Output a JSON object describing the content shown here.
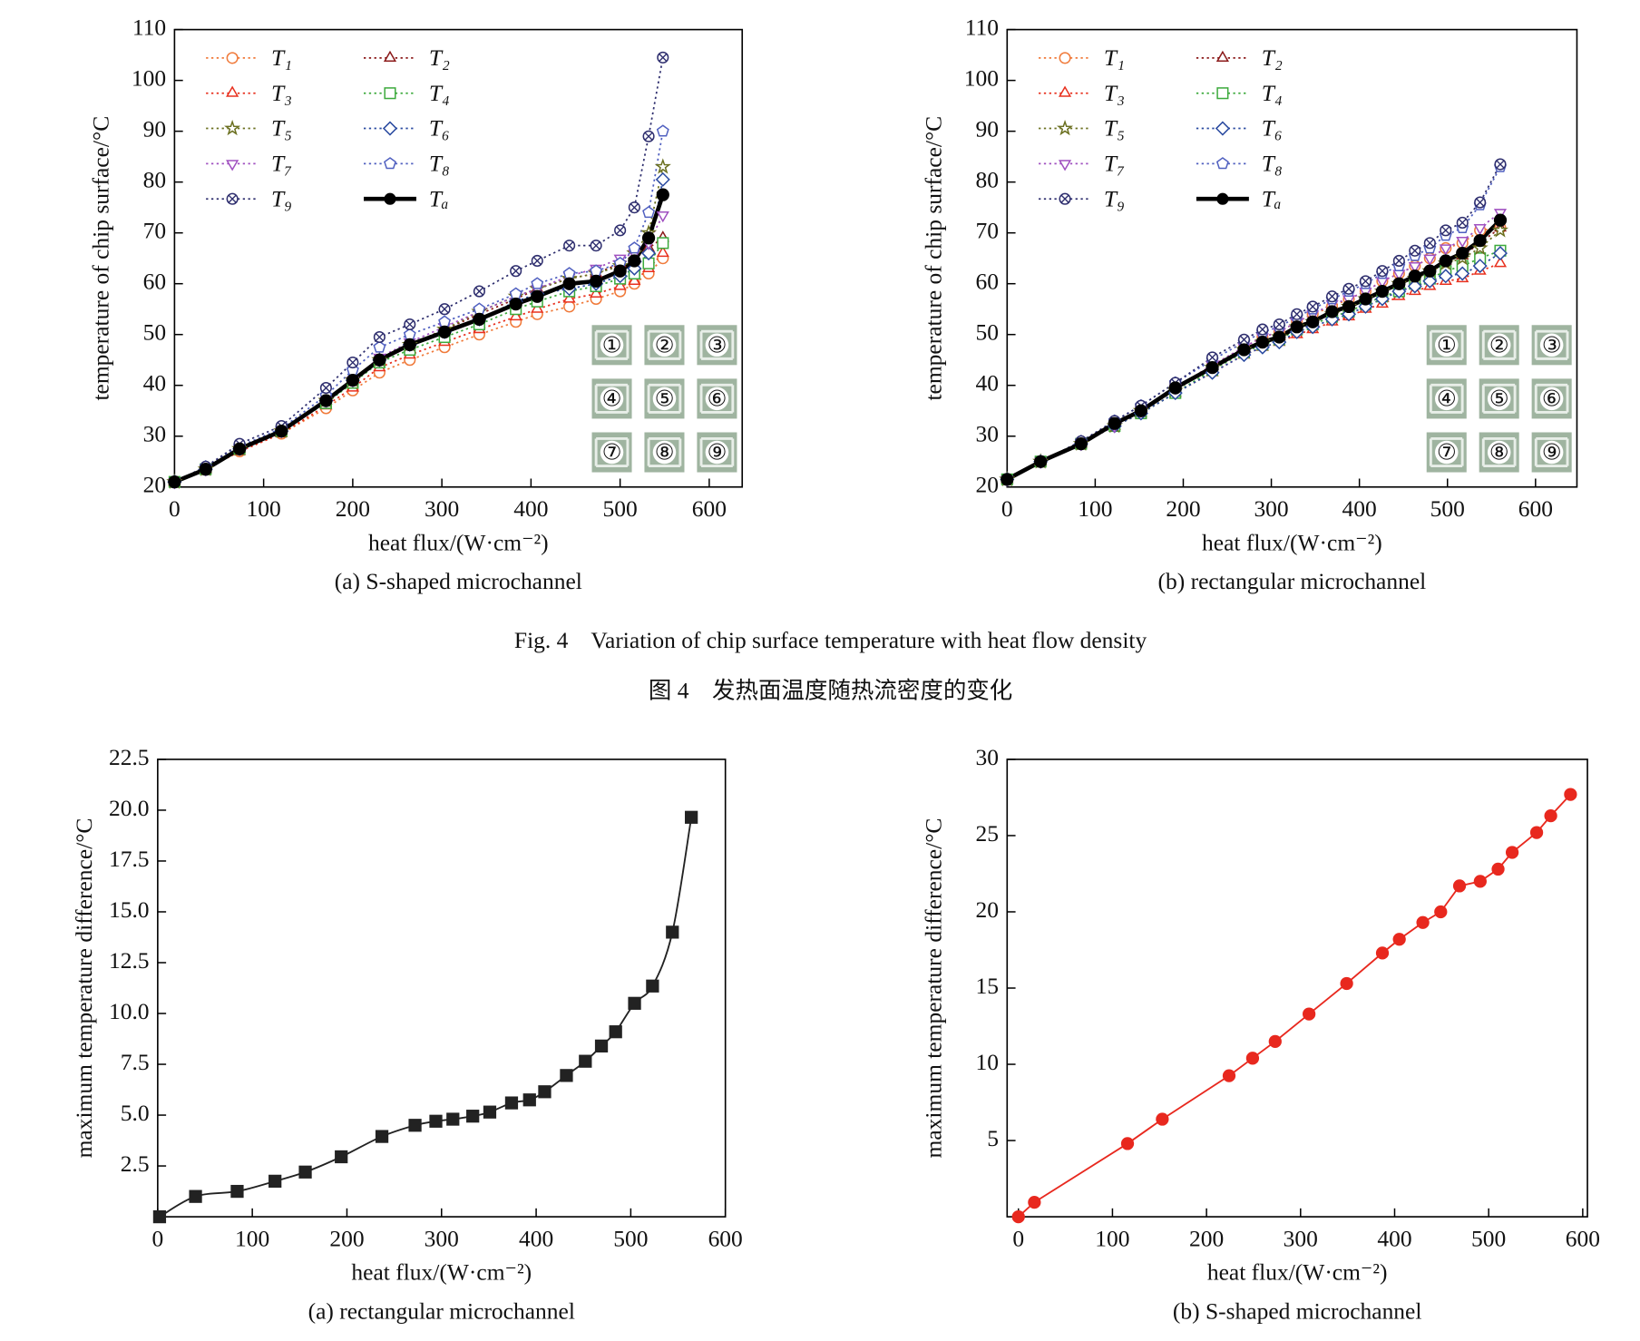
{
  "chart_data": [
    {
      "type": "line",
      "caption": "(a) S-shaped microchannel",
      "xlabel": "heat flux/(W·cm⁻²)",
      "ylabel": "temperature of chip surface/°C",
      "xlim": [
        0,
        637
      ],
      "ylim": [
        20,
        110
      ],
      "xticks": [
        0,
        100,
        200,
        300,
        400,
        500,
        600
      ],
      "yticks": [
        20,
        30,
        40,
        50,
        60,
        70,
        80,
        90,
        100,
        110
      ],
      "legend": "upper left",
      "annotations": [
        "①",
        "②",
        "③",
        "④",
        "⑤",
        "⑥",
        "⑦",
        "⑧",
        "⑨"
      ],
      "x": [
        0,
        35,
        73,
        120,
        170,
        200,
        230,
        264,
        303,
        342,
        383,
        407,
        443,
        473,
        500,
        516,
        532,
        548
      ],
      "series": [
        {
          "name": "T₁",
          "color": "#f07a3a",
          "marker": "circle",
          "linestyle": "dotted",
          "linewidth": 1.5,
          "values": [
            21,
            23.5,
            27,
            30.5,
            35.5,
            39,
            42.5,
            45,
            47.5,
            50,
            52.5,
            54,
            55.5,
            57,
            58.5,
            60,
            62,
            65
          ]
        },
        {
          "name": "T₂",
          "color": "#8b1a1a",
          "marker": "triangle",
          "linestyle": "dotted",
          "linewidth": 1.5,
          "values": [
            21,
            23.5,
            27.5,
            31,
            37,
            41,
            45,
            48,
            51,
            54,
            57,
            59,
            61,
            62,
            64,
            65,
            67,
            69
          ]
        },
        {
          "name": "T₃",
          "color": "#e8301e",
          "marker": "triangle",
          "linestyle": "dotted",
          "linewidth": 1.5,
          "values": [
            21,
            23.5,
            27,
            30.5,
            36,
            39.5,
            43.5,
            46,
            48.5,
            51,
            53.5,
            55,
            57,
            58,
            59.5,
            60.5,
            63,
            66
          ]
        },
        {
          "name": "T₄",
          "color": "#3caa3c",
          "marker": "square",
          "linestyle": "dotted",
          "linewidth": 1.5,
          "values": [
            21,
            23.5,
            27.5,
            31,
            36.5,
            40.5,
            44.5,
            47,
            49.5,
            52,
            55,
            56.5,
            58.5,
            59.5,
            61,
            62,
            64,
            68
          ]
        },
        {
          "name": "T₅",
          "color": "#6b7020",
          "marker": "star",
          "linestyle": "dotted",
          "linewidth": 1.5,
          "values": [
            21,
            23.5,
            27.5,
            31,
            37,
            41,
            45,
            48,
            51,
            54.5,
            57.5,
            59,
            61,
            62,
            63.5,
            66,
            70,
            83
          ]
        },
        {
          "name": "T₆",
          "color": "#2a4aa0",
          "marker": "diamond",
          "linestyle": "dotted",
          "linewidth": 1.5,
          "values": [
            21,
            23.5,
            27.5,
            31,
            37,
            41,
            45,
            48,
            50.5,
            53,
            56.5,
            58,
            59,
            60,
            61.5,
            63,
            66,
            80.5
          ]
        },
        {
          "name": "T₇",
          "color": "#a050c0",
          "marker": "triangle-down",
          "linestyle": "dotted",
          "linewidth": 1.5,
          "values": [
            21,
            23.5,
            27.5,
            31,
            37,
            41,
            45.5,
            48.5,
            51.5,
            54.5,
            57.5,
            59,
            61.5,
            63,
            65,
            66,
            68,
            73.5
          ]
        },
        {
          "name": "T₈",
          "color": "#5060c0",
          "marker": "pentagon",
          "linestyle": "dotted",
          "linewidth": 1.5,
          "values": [
            21,
            24,
            28,
            31.5,
            38,
            43,
            47.5,
            50,
            52.5,
            55,
            58,
            60,
            62,
            62.5,
            64,
            67,
            74,
            90
          ]
        },
        {
          "name": "T₉",
          "color": "#2e2e6e",
          "marker": "circle-x",
          "linestyle": "dotted",
          "linewidth": 1.5,
          "values": [
            21,
            24,
            28.5,
            32,
            39.5,
            44.5,
            49.5,
            52,
            55,
            58.5,
            62.5,
            64.5,
            67.5,
            67.5,
            70.5,
            75,
            89,
            104.5
          ]
        },
        {
          "name": "Tₐ",
          "color": "#000000",
          "marker": "filled-circle",
          "linestyle": "solid",
          "linewidth": 4,
          "values": [
            21,
            23.5,
            27.5,
            31,
            37,
            41,
            45,
            48,
            50.5,
            53,
            56,
            57.5,
            60,
            60.5,
            62.5,
            64.5,
            69,
            77.5
          ]
        }
      ]
    },
    {
      "type": "line",
      "caption": "(b) rectangular microchannel",
      "xlabel": "heat flux/(W·cm⁻²)",
      "ylabel": "temperature of chip surface/°C",
      "xlim": [
        0,
        647
      ],
      "ylim": [
        20,
        110
      ],
      "xticks": [
        0,
        100,
        200,
        300,
        400,
        500,
        600
      ],
      "yticks": [
        20,
        30,
        40,
        50,
        60,
        70,
        80,
        90,
        100,
        110
      ],
      "legend": "upper left",
      "annotations": [
        "①",
        "②",
        "③",
        "④",
        "⑤",
        "⑥",
        "⑦",
        "⑧",
        "⑨"
      ],
      "x": [
        0,
        38,
        84,
        122,
        152,
        191,
        233,
        269,
        290,
        309,
        329,
        347,
        369,
        388,
        407,
        426,
        445,
        463,
        480,
        498,
        517,
        537,
        560
      ],
      "series": [
        {
          "name": "T₁",
          "color": "#f07a3a",
          "marker": "circle",
          "linestyle": "dotted",
          "linewidth": 1.5,
          "values": [
            21.5,
            25,
            28.5,
            32.5,
            35,
            39.5,
            44,
            47.5,
            49.5,
            50.5,
            52.5,
            54,
            55.5,
            57,
            58.5,
            60.5,
            62,
            63.5,
            65,
            67,
            68,
            70.5,
            71
          ]
        },
        {
          "name": "T₂",
          "color": "#8b1a1a",
          "marker": "triangle",
          "linestyle": "dotted",
          "linewidth": 1.5,
          "values": [
            21.5,
            25,
            28.5,
            32.5,
            35,
            39.5,
            43.5,
            47,
            48.5,
            49.5,
            51.5,
            52.5,
            54.5,
            55.5,
            57,
            58.5,
            60,
            61.5,
            62.5,
            64.5,
            65.5,
            68,
            71
          ]
        },
        {
          "name": "T₃",
          "color": "#e8301e",
          "marker": "triangle",
          "linestyle": "dotted",
          "linewidth": 1.5,
          "values": [
            21.5,
            25,
            28.5,
            32,
            34.5,
            38.5,
            42.5,
            46,
            47.5,
            48.5,
            50,
            51,
            52.5,
            53.5,
            55,
            56,
            57.5,
            58.5,
            59.5,
            60.5,
            61,
            62.5,
            64
          ]
        },
        {
          "name": "T₄",
          "color": "#3caa3c",
          "marker": "square",
          "linestyle": "dotted",
          "linewidth": 1.5,
          "values": [
            21.5,
            25,
            28.5,
            32,
            34.5,
            38.5,
            43,
            46.5,
            48,
            49,
            51,
            52,
            53.5,
            54.5,
            56,
            57.5,
            58.5,
            60,
            61,
            62.5,
            63.5,
            65,
            66.5
          ]
        },
        {
          "name": "T₅",
          "color": "#6b7020",
          "marker": "star",
          "linestyle": "dotted",
          "linewidth": 1.5,
          "values": [
            21.5,
            25,
            28.5,
            32,
            35,
            39,
            43.5,
            47,
            48.5,
            49.5,
            51.5,
            52.5,
            54,
            55.5,
            57,
            58.5,
            60,
            61,
            62.5,
            64,
            65,
            67,
            70.5
          ]
        },
        {
          "name": "T₆",
          "color": "#2a4aa0",
          "marker": "diamond",
          "linestyle": "dotted",
          "linewidth": 1.5,
          "values": [
            21.5,
            25,
            28.5,
            32,
            34.5,
            38.5,
            42.5,
            46,
            47.5,
            48.5,
            50.5,
            51.5,
            53,
            54,
            55.5,
            57,
            58.5,
            59.5,
            60.5,
            61.5,
            62,
            63.5,
            66
          ]
        },
        {
          "name": "T₇",
          "color": "#a050c0",
          "marker": "triangle-down",
          "linestyle": "dotted",
          "linewidth": 1.5,
          "values": [
            21.5,
            25,
            28.5,
            32,
            35,
            39.5,
            44,
            47.5,
            49.5,
            50.5,
            52.5,
            54,
            56,
            57,
            58.5,
            60.5,
            62,
            63.5,
            65,
            67,
            68.5,
            71,
            74
          ]
        },
        {
          "name": "T₈",
          "color": "#5060c0",
          "marker": "pentagon",
          "linestyle": "dotted",
          "linewidth": 1.5,
          "values": [
            21.5,
            25,
            29,
            33,
            36,
            40.5,
            45,
            48.5,
            50.5,
            51.5,
            53.5,
            55,
            57,
            58.5,
            60,
            62,
            63.5,
            65.5,
            67,
            69.5,
            71,
            75.5,
            83
          ]
        },
        {
          "name": "T₉",
          "color": "#2e2e6e",
          "marker": "circle-x",
          "linestyle": "dotted",
          "linewidth": 1.5,
          "values": [
            21.5,
            25,
            29,
            33,
            36,
            40.5,
            45.5,
            49,
            51,
            52,
            54,
            55.5,
            57.5,
            59,
            60.5,
            62.5,
            64.5,
            66.5,
            68,
            70.5,
            72,
            76,
            83.5
          ]
        },
        {
          "name": "Tₐ",
          "color": "#000000",
          "marker": "filled-circle",
          "linestyle": "solid",
          "linewidth": 4,
          "values": [
            21.5,
            25,
            28.5,
            32.5,
            35,
            39.5,
            43.5,
            47,
            48.5,
            49.5,
            51.5,
            52.5,
            54.5,
            55.5,
            57,
            58.5,
            60,
            61.5,
            62.5,
            64.5,
            66,
            68.5,
            72.5
          ]
        }
      ]
    },
    {
      "type": "line",
      "caption": "(a) rectangular microchannel",
      "xlabel": "heat flux/(W·cm⁻²)",
      "ylabel": "maximum temperature difference/°C",
      "xlim": [
        0,
        600
      ],
      "ylim": [
        0,
        22.5
      ],
      "xticks": [
        0,
        100,
        200,
        300,
        400,
        500,
        600
      ],
      "yticks": [
        2.5,
        {
          "value": 5,
          "label": "5.0"
        },
        7.5,
        {
          "value": 10,
          "label": "10.0"
        },
        12.5,
        {
          "value": 15,
          "label": "15.0"
        },
        17.5,
        {
          "value": 20,
          "label": "20.0"
        },
        22.5
      ],
      "color": "#222222",
      "marker": "filled-square",
      "linestyle": "solid",
      "linewidth": 1.6,
      "smooth": true,
      "x": [
        2,
        40,
        84,
        124,
        156,
        194,
        237,
        272,
        294,
        312,
        333,
        351,
        374,
        393,
        409,
        432,
        452,
        469,
        484,
        504,
        523,
        544,
        564
      ],
      "values": [
        0,
        1,
        1.25,
        1.75,
        2.2,
        2.95,
        3.95,
        4.5,
        4.7,
        4.8,
        4.95,
        5.15,
        5.6,
        5.75,
        6.15,
        6.95,
        7.65,
        8.4,
        9.1,
        10.5,
        11.35,
        14,
        19.65
      ]
    },
    {
      "type": "line",
      "caption": "(b) S-shaped microchannel",
      "xlabel": "heat flux/(W·cm⁻²)",
      "ylabel": "maximum temperature difference/°C",
      "xlim": [
        -12,
        605
      ],
      "ylim": [
        0,
        30
      ],
      "xticks": [
        0,
        100,
        200,
        300,
        400,
        500,
        600
      ],
      "yticks": [
        5,
        10,
        15,
        20,
        25,
        30
      ],
      "color": "#e8281e",
      "marker": "filled-circle",
      "linestyle": "solid",
      "linewidth": 1.6,
      "smooth": false,
      "x": [
        0,
        17,
        116,
        153,
        224,
        249,
        273,
        309,
        349,
        387,
        405,
        430,
        449,
        469,
        491,
        510,
        525,
        551,
        566,
        587
      ],
      "values": [
        0,
        0.95,
        4.8,
        6.4,
        9.25,
        10.4,
        11.5,
        13.3,
        15.3,
        17.3,
        18.2,
        19.3,
        20,
        21.7,
        22,
        22.8,
        23.9,
        25.2,
        26.3,
        27.7
      ]
    }
  ],
  "figure_caption_en": "Fig. 4    Variation of chip surface temperature with heat flow density",
  "figure_caption_zh": "图 4    发热面温度随热流密度的变化"
}
